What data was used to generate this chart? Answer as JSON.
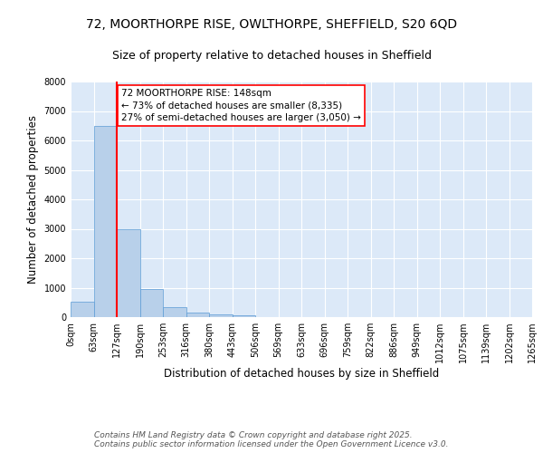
{
  "title_line1": "72, MOORTHORPE RISE, OWLTHORPE, SHEFFIELD, S20 6QD",
  "title_line2": "Size of property relative to detached houses in Sheffield",
  "xlabel": "Distribution of detached houses by size in Sheffield",
  "ylabel": "Number of detached properties",
  "footer_line1": "Contains HM Land Registry data © Crown copyright and database right 2025.",
  "footer_line2": "Contains public sector information licensed under the Open Government Licence v3.0.",
  "annotation_line1": "72 MOORTHORPE RISE: 148sqm",
  "annotation_line2": "← 73% of detached houses are smaller (8,335)",
  "annotation_line3": "27% of semi-detached houses are larger (3,050) →",
  "bar_values": [
    530,
    6480,
    2980,
    960,
    330,
    150,
    100,
    60,
    0,
    0,
    0,
    0,
    0,
    0,
    0,
    0,
    0,
    0,
    0,
    0
  ],
  "bin_labels": [
    "0sqm",
    "63sqm",
    "127sqm",
    "190sqm",
    "253sqm",
    "316sqm",
    "380sqm",
    "443sqm",
    "506sqm",
    "569sqm",
    "633sqm",
    "696sqm",
    "759sqm",
    "822sqm",
    "886sqm",
    "949sqm",
    "1012sqm",
    "1075sqm",
    "1139sqm",
    "1202sqm",
    "1265sqm"
  ],
  "bar_color": "#b8d0ea",
  "bar_edge_color": "#5b9bd5",
  "vline_x": 2.0,
  "vline_color": "red",
  "ylim": [
    0,
    8000
  ],
  "yticks": [
    0,
    1000,
    2000,
    3000,
    4000,
    5000,
    6000,
    7000,
    8000
  ],
  "bg_color": "#dce9f8",
  "grid_color": "#ffffff",
  "title_fontsize": 10,
  "subtitle_fontsize": 9,
  "axis_label_fontsize": 8.5,
  "tick_fontsize": 7,
  "annotation_fontsize": 7.5,
  "footer_fontsize": 6.5
}
